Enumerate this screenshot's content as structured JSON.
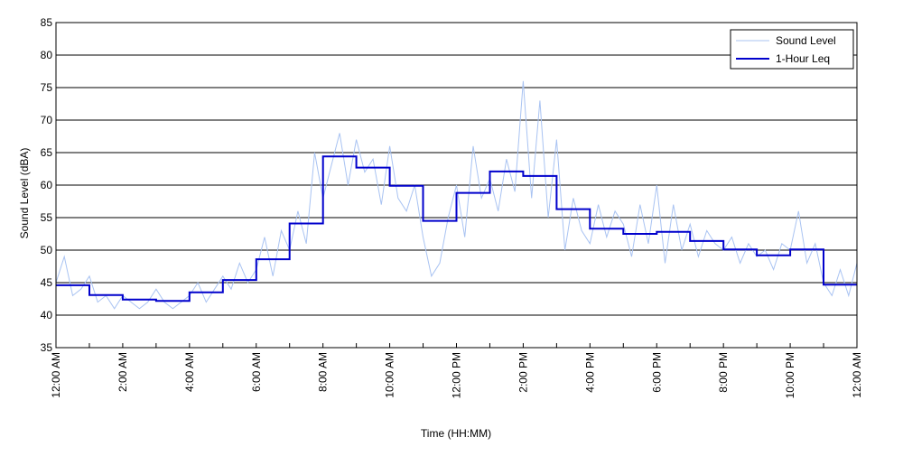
{
  "chart_data": {
    "type": "line",
    "title": "",
    "xlabel": "Time (HH:MM)",
    "ylabel": "Sound Level (dBA)",
    "xlim": [
      0,
      24
    ],
    "ylim": [
      35,
      85
    ],
    "y_ticks": [
      35,
      40,
      45,
      50,
      55,
      60,
      65,
      70,
      75,
      80,
      85
    ],
    "x_ticks": [
      {
        "hour": 0,
        "label": "12:00 AM"
      },
      {
        "hour": 1,
        "label": ""
      },
      {
        "hour": 2,
        "label": "2:00 AM"
      },
      {
        "hour": 3,
        "label": ""
      },
      {
        "hour": 4,
        "label": "4:00 AM"
      },
      {
        "hour": 5,
        "label": ""
      },
      {
        "hour": 6,
        "label": "6:00 AM"
      },
      {
        "hour": 7,
        "label": ""
      },
      {
        "hour": 8,
        "label": "8:00 AM"
      },
      {
        "hour": 9,
        "label": ""
      },
      {
        "hour": 10,
        "label": "10:00 AM"
      },
      {
        "hour": 11,
        "label": ""
      },
      {
        "hour": 12,
        "label": "12:00 PM"
      },
      {
        "hour": 13,
        "label": ""
      },
      {
        "hour": 14,
        "label": "2:00 PM"
      },
      {
        "hour": 15,
        "label": ""
      },
      {
        "hour": 16,
        "label": "4:00 PM"
      },
      {
        "hour": 17,
        "label": ""
      },
      {
        "hour": 18,
        "label": "6:00 PM"
      },
      {
        "hour": 19,
        "label": ""
      },
      {
        "hour": 20,
        "label": "8:00 PM"
      },
      {
        "hour": 21,
        "label": ""
      },
      {
        "hour": 22,
        "label": "10:00 PM"
      },
      {
        "hour": 23,
        "label": ""
      },
      {
        "hour": 24,
        "label": "12:00 AM"
      }
    ],
    "grid": "horizontal",
    "legend": "top-right",
    "series": [
      {
        "name": "Sound Level",
        "style": "line",
        "color": "#a9c3f2",
        "x": [
          0.0,
          0.25,
          0.5,
          0.75,
          1.0,
          1.25,
          1.5,
          1.75,
          2.0,
          2.25,
          2.5,
          2.75,
          3.0,
          3.25,
          3.5,
          3.75,
          4.0,
          4.25,
          4.5,
          4.75,
          5.0,
          5.25,
          5.5,
          5.75,
          6.0,
          6.25,
          6.5,
          6.75,
          7.0,
          7.25,
          7.5,
          7.75,
          8.0,
          8.25,
          8.5,
          8.75,
          9.0,
          9.25,
          9.5,
          9.75,
          10.0,
          10.25,
          10.5,
          10.75,
          11.0,
          11.25,
          11.5,
          11.75,
          12.0,
          12.25,
          12.5,
          12.75,
          13.0,
          13.25,
          13.5,
          13.75,
          14.0,
          14.25,
          14.5,
          14.75,
          15.0,
          15.25,
          15.5,
          15.75,
          16.0,
          16.25,
          16.5,
          16.75,
          17.0,
          17.25,
          17.5,
          17.75,
          18.0,
          18.25,
          18.5,
          18.75,
          19.0,
          19.25,
          19.5,
          19.75,
          20.0,
          20.25,
          20.5,
          20.75,
          21.0,
          21.25,
          21.5,
          21.75,
          22.0,
          22.25,
          22.5,
          22.75,
          23.0,
          23.25,
          23.5,
          23.75,
          24.0
        ],
        "values": [
          45,
          49,
          43,
          44,
          46,
          42,
          43,
          41,
          43,
          42,
          41,
          42,
          44,
          42,
          41,
          42,
          43,
          45,
          42,
          44,
          46,
          44,
          48,
          45,
          47,
          52,
          46,
          53,
          50,
          56,
          51,
          65,
          58,
          63,
          68,
          60,
          67,
          62,
          64,
          57,
          66,
          58,
          56,
          60,
          52,
          46,
          48,
          55,
          60,
          52,
          66,
          58,
          61,
          56,
          64,
          59,
          76,
          58,
          73,
          55,
          67,
          50,
          58,
          53,
          51,
          57,
          52,
          56,
          54,
          49,
          57,
          51,
          60,
          48,
          57,
          50,
          54,
          49,
          53,
          51,
          50,
          52,
          48,
          51,
          49,
          50,
          47,
          51,
          50,
          56,
          48,
          51,
          45,
          43,
          47,
          43,
          48
        ]
      },
      {
        "name": "1-Hour Leq",
        "style": "step",
        "color": "#0000cc",
        "x": [
          0,
          1,
          2,
          3,
          4,
          5,
          6,
          7,
          8,
          9,
          10,
          11,
          12,
          13,
          14,
          15,
          16,
          17,
          18,
          19,
          20,
          21,
          22,
          23
        ],
        "values": [
          44.6,
          43.1,
          42.4,
          42.2,
          43.5,
          45.4,
          48.6,
          54.1,
          64.4,
          62.7,
          59.9,
          54.5,
          58.8,
          62.1,
          61.4,
          56.3,
          53.3,
          52.5,
          52.8,
          51.4,
          50.1,
          49.2,
          50.1,
          44.7
        ]
      }
    ]
  }
}
